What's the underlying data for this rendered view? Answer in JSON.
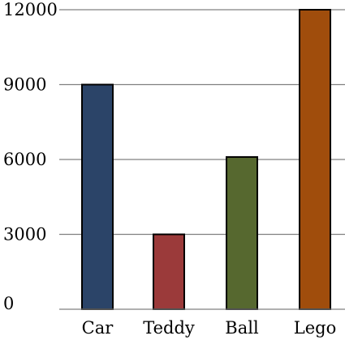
{
  "chart_data": {
    "type": "bar",
    "categories": [
      "Car",
      "Teddy",
      "Ball",
      "Lego"
    ],
    "values": [
      9000,
      3000,
      6100,
      12000
    ],
    "colors": [
      "#2b4468",
      "#9b3a3a",
      "#56682f",
      "#a04d0c"
    ],
    "title": "",
    "xlabel": "",
    "ylabel": "",
    "ylim": [
      0,
      12000
    ],
    "yticks": [
      0,
      3000,
      6000,
      9000,
      12000
    ],
    "grid": true,
    "legend": "none"
  }
}
